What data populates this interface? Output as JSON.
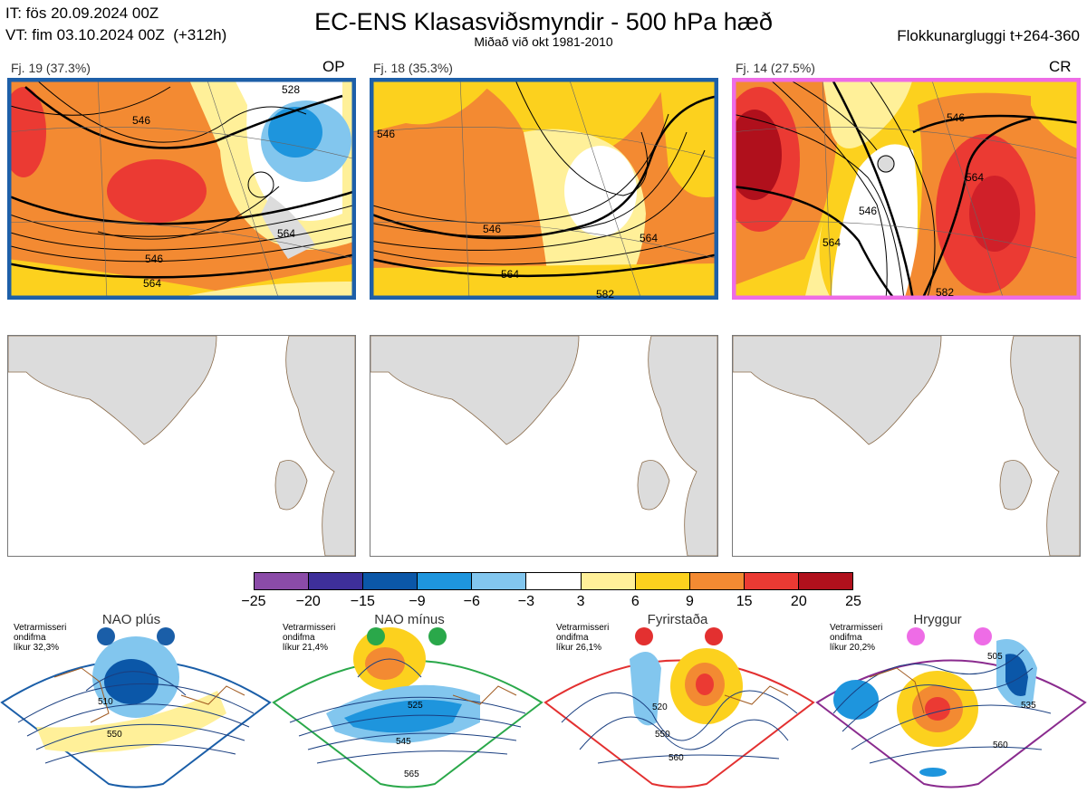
{
  "header": {
    "it_line": "IT: fös 20.09.2024 00Z",
    "vt_line": "VT: fim 03.10.2024 00Z  (+312h)",
    "title": "EC-ENS Klasasviðsmyndir - 500 hPa hæð",
    "subtitle": "Miðað við okt 1981-2010",
    "window": "Flokkunargluggi t+264-360"
  },
  "panels": [
    {
      "label": "Fj. 19 (37.3%)",
      "tag": "OP",
      "frame_color": "#1d5fa8",
      "contours": [
        "546",
        "528",
        "546",
        "564",
        "546",
        "564"
      ]
    },
    {
      "label": "Fj. 18 (35.3%)",
      "tag": "",
      "frame_color": "#1d5fa8",
      "contours": [
        "546",
        "546",
        "564",
        "564",
        "582",
        "546"
      ]
    },
    {
      "label": "Fj. 14 (27.5%)",
      "tag": "CR",
      "frame_color": "#ee6ce6",
      "contours": [
        "546",
        "564",
        "546",
        "564",
        "546",
        "582"
      ]
    }
  ],
  "colorbar": {
    "colors": [
      "#8b4ba8",
      "#3e2f9a",
      "#0b57a8",
      "#1e95dd",
      "#82c6ee",
      "#ffffff",
      "#fff099",
      "#fcd11e",
      "#f38a32",
      "#eb3a33",
      "#b0101c"
    ],
    "ticks": [
      "−25",
      "−20",
      "−15",
      "−9",
      "−6",
      "−3",
      "3",
      "6",
      "9",
      "15",
      "20",
      "25"
    ]
  },
  "regimes": [
    {
      "name": "NAO plús",
      "note": [
        "Vetrarmisseri",
        "ondifma",
        "líkur 32,3%"
      ],
      "color": "#1a5ea8",
      "labels": [
        "510",
        "550"
      ]
    },
    {
      "name": "NAO mínus",
      "note": [
        "Vetrarmisseri",
        "ondifma",
        "líkur 21,4%"
      ],
      "color": "#2aa84a",
      "labels": [
        "525",
        "545",
        "565"
      ]
    },
    {
      "name": "Fyrirstaða",
      "note": [
        "Vetrarmisseri",
        "ondifma",
        "líkur 26,1%"
      ],
      "color": "#e33030",
      "labels": [
        "520",
        "550",
        "560"
      ]
    },
    {
      "name": "Hryggur",
      "note": [
        "Vetrarmisseri",
        "ondifma",
        "líkur 20,2%"
      ],
      "color": "#8a2b8e",
      "labels": [
        "505",
        "535",
        "560"
      ]
    }
  ]
}
